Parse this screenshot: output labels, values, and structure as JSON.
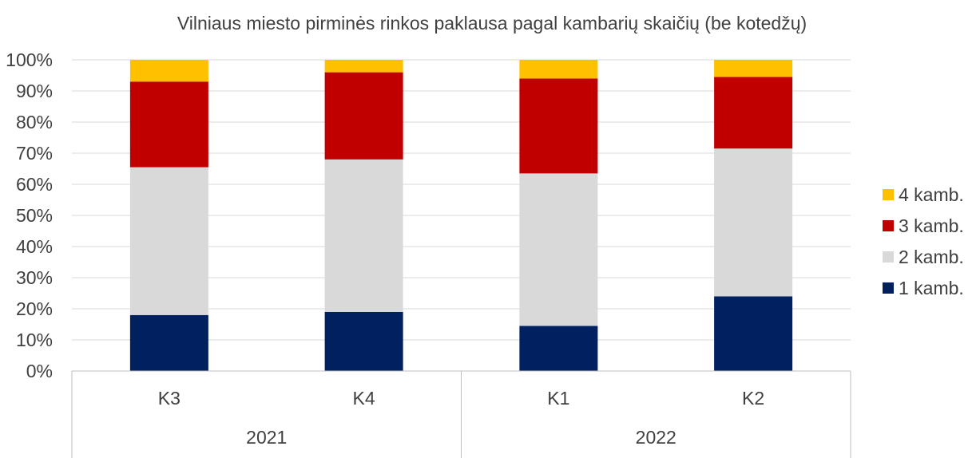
{
  "chart_data": {
    "type": "bar",
    "stacked": true,
    "percent_stacked": true,
    "title": "Vilniaus miesto pirminės rinkos paklausa pagal kambarių skaičių (be kotedžų)",
    "categories": [
      "K3",
      "K4",
      "K1",
      "K2"
    ],
    "groups": [
      {
        "label": "2021",
        "categories": [
          "K3",
          "K4"
        ]
      },
      {
        "label": "2022",
        "categories": [
          "K1",
          "K2"
        ]
      }
    ],
    "y_ticks": [
      "0%",
      "10%",
      "20%",
      "30%",
      "40%",
      "50%",
      "60%",
      "70%",
      "80%",
      "90%",
      "100%"
    ],
    "ylim": [
      0,
      100
    ],
    "grid": true,
    "legend_position": "right",
    "series": [
      {
        "name": "1 kamb.",
        "color": "#002060",
        "values": [
          18,
          19,
          14.5,
          24
        ]
      },
      {
        "name": "2 kamb.",
        "color": "#D9D9D9",
        "values": [
          47.5,
          49,
          49,
          47.5
        ]
      },
      {
        "name": "3 kamb.",
        "color": "#C00000",
        "values": [
          27.5,
          28,
          30.5,
          23
        ]
      },
      {
        "name": "4 kamb.",
        "color": "#FFC000",
        "values": [
          7,
          4,
          6,
          5.5
        ]
      }
    ],
    "legend_order": [
      "4 kamb.",
      "3 kamb.",
      "2 kamb.",
      "1 kamb."
    ]
  }
}
